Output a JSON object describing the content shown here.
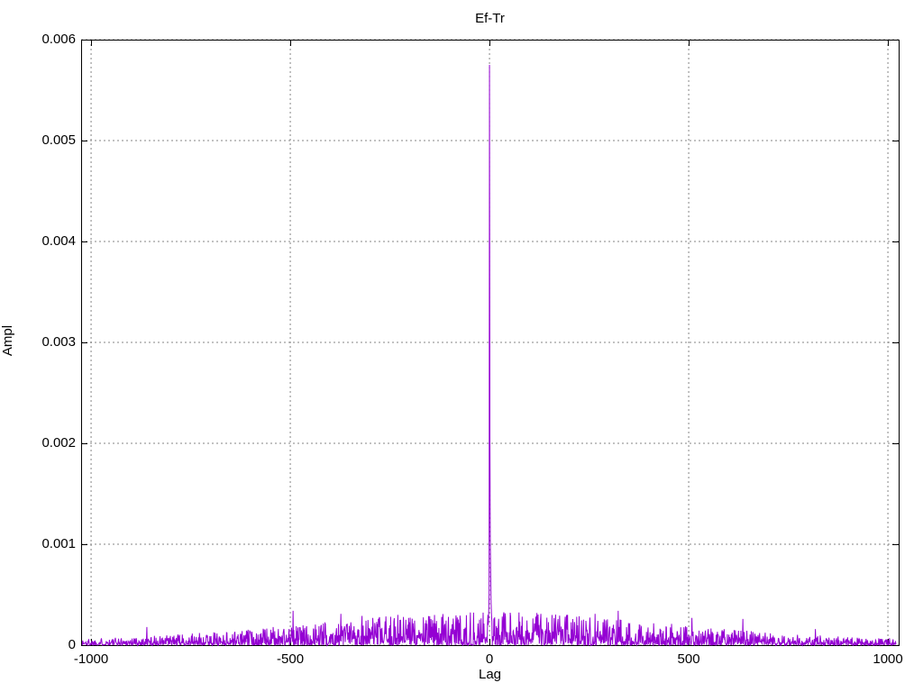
{
  "chart_data": {
    "type": "line",
    "title": "Ef-Tr",
    "xlabel": "Lag",
    "ylabel": "Ampl",
    "xlim": [
      -1025,
      1027
    ],
    "ylim": [
      0,
      0.006
    ],
    "x_ticks": [
      {
        "value": -1000,
        "label": "-1000"
      },
      {
        "value": -500,
        "label": "-500"
      },
      {
        "value": 0,
        "label": "0"
      },
      {
        "value": 500,
        "label": "500"
      },
      {
        "value": 1000,
        "label": "1000"
      }
    ],
    "y_ticks": [
      {
        "value": 0,
        "label": "0"
      },
      {
        "value": 0.001,
        "label": "0.001"
      },
      {
        "value": 0.002,
        "label": "0.002"
      },
      {
        "value": 0.003,
        "label": "0.003"
      },
      {
        "value": 0.004,
        "label": "0.004"
      },
      {
        "value": 0.005,
        "label": "0.005"
      },
      {
        "value": 0.006,
        "label": "0.006"
      }
    ],
    "grid": {
      "visible": true,
      "color": "#858585",
      "dash": "2,3"
    },
    "background": "#ffffff",
    "border_color": "#000000",
    "tick_length": 7,
    "legend": "none",
    "series": [
      {
        "name": "Ef-Tr",
        "color": "#9400D3",
        "style": "lines",
        "peak": {
          "lag": 0,
          "value": 0.00575
        },
        "center_points": [
          [
            -5,
            0.00022
          ],
          [
            -4,
            0.0003
          ],
          [
            -3,
            0.0002
          ],
          [
            -2,
            0.00032
          ],
          [
            -1,
            0.0005
          ],
          [
            0,
            0.00575
          ],
          [
            1,
            0.00207
          ],
          [
            2,
            0.00104
          ],
          [
            3,
            0.0007
          ],
          [
            4,
            0.00042
          ],
          [
            5,
            0.0003
          ],
          [
            6,
            0.00024
          ]
        ],
        "notable_spikes": [
          {
            "lag": -860,
            "value": 0.00018
          },
          {
            "lag": -493,
            "value": 0.00034
          },
          {
            "lag": -373,
            "value": 0.00031
          },
          {
            "lag": -320,
            "value": 0.00029
          },
          {
            "lag": -230,
            "value": 0.0003
          },
          {
            "lag": -120,
            "value": 0.00028
          },
          {
            "lag": 35,
            "value": 0.0003
          },
          {
            "lag": 129,
            "value": 0.00031
          },
          {
            "lag": 196,
            "value": 0.0003
          },
          {
            "lag": 265,
            "value": 0.00031
          },
          {
            "lag": 323,
            "value": 0.00034
          },
          {
            "lag": 508,
            "value": 0.00027
          },
          {
            "lag": 636,
            "value": 0.00026
          },
          {
            "lag": 818,
            "value": 0.00016
          }
        ],
        "noise": {
          "seed": 1337,
          "lag_min": -1023,
          "lag_max": 1020,
          "step": 1,
          "base": 5e-05,
          "amp": 0.00028,
          "gauss_width": 620,
          "shape": 2.0
        }
      }
    ]
  }
}
